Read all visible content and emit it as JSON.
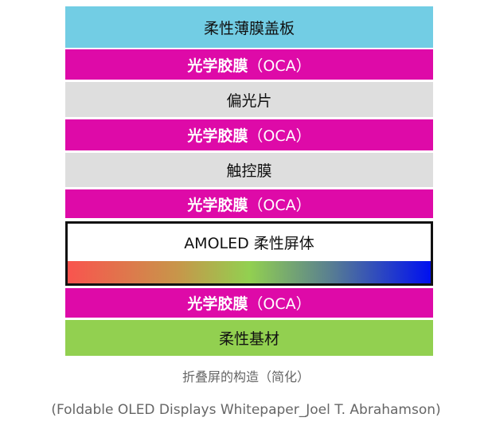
{
  "layers": [
    {
      "label": "柔性薄膜盖板",
      "color": "#72cde4"
    },
    {
      "label": "光学胶膜",
      "suffix": "（OCA）",
      "color": "#de0aa8"
    },
    {
      "label": "偏光片",
      "color": "#dedede"
    },
    {
      "label": "光学胶膜",
      "suffix": "（OCA）",
      "color": "#de0aa8"
    },
    {
      "label": "触控膜",
      "color": "#dedede"
    },
    {
      "label": "光学胶膜",
      "suffix": "（OCA）",
      "color": "#de0aa8"
    },
    {
      "label": "AMOLED 柔性屏体",
      "gradient": [
        "#f9544e",
        "#c8954a",
        "#92d050",
        "#5a8090",
        "#0010f0"
      ]
    },
    {
      "label": "光学胶膜",
      "suffix": "（OCA）",
      "color": "#de0aa8"
    },
    {
      "label": "柔性基材",
      "color": "#92d050"
    }
  ],
  "caption": "折叠屏的构造（简化）",
  "source": "(Foldable OLED Displays Whitepaper_Joel T. Abrahamson)"
}
